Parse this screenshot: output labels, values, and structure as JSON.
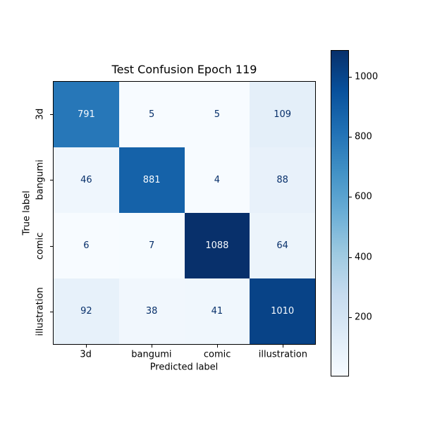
{
  "figure": {
    "background": "#ffffff"
  },
  "chart_data": {
    "type": "heatmap",
    "title": "Test Confusion Epoch 119",
    "xlabel": "Predicted label",
    "ylabel": "True label",
    "categories": [
      "3d",
      "bangumi",
      "comic",
      "illustration"
    ],
    "matrix": [
      [
        791,
        5,
        5,
        109
      ],
      [
        46,
        881,
        4,
        88
      ],
      [
        6,
        7,
        1088,
        64
      ],
      [
        92,
        38,
        41,
        1010
      ]
    ],
    "value_range": [
      4,
      1088
    ],
    "colorbar_ticks": [
      200,
      400,
      600,
      800,
      1000
    ],
    "colormap": {
      "name": "Blues",
      "stops": [
        "#f7fbff",
        "#deebf7",
        "#c6dbef",
        "#9ecae1",
        "#6baed6",
        "#4292c6",
        "#2171b5",
        "#08519c",
        "#08306b"
      ]
    },
    "grid": false,
    "legend_position": "right-colorbar"
  }
}
